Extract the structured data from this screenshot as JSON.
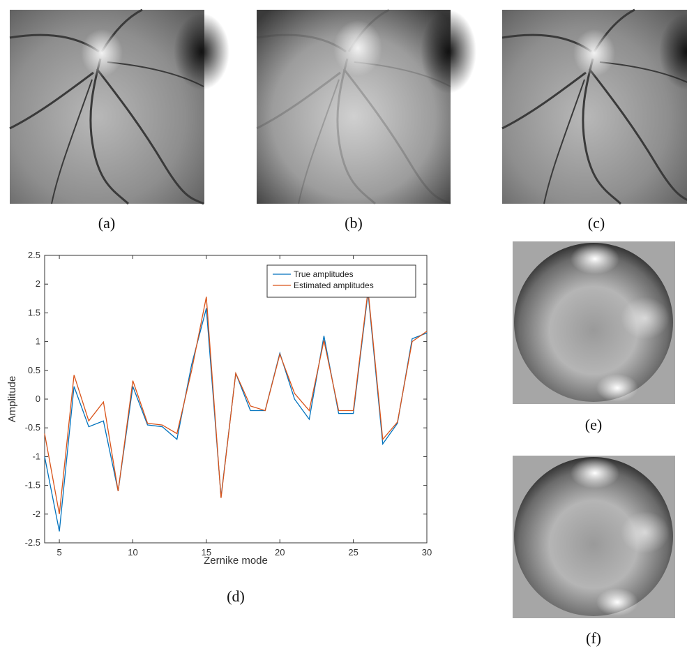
{
  "panels": {
    "a": "(a)",
    "b": "(b)",
    "c": "(c)",
    "d": "(d)",
    "e": "(e)",
    "f": "(f)"
  },
  "chart_data": {
    "type": "line",
    "x_label": "Zernike mode",
    "y_label": "Amplitude",
    "x": [
      4,
      5,
      6,
      7,
      8,
      9,
      10,
      11,
      12,
      13,
      14,
      15,
      16,
      17,
      18,
      19,
      20,
      21,
      22,
      23,
      24,
      25,
      26,
      27,
      28,
      29,
      30
    ],
    "series": [
      {
        "name": "True amplitudes",
        "color": "#0072bd",
        "values": [
          -1.0,
          -2.3,
          0.22,
          -0.48,
          -0.38,
          -1.6,
          0.22,
          -0.45,
          -0.48,
          -0.7,
          0.6,
          1.58,
          -1.7,
          0.45,
          -0.2,
          -0.2,
          0.8,
          0.0,
          -0.35,
          1.1,
          -0.25,
          -0.25,
          1.85,
          -0.78,
          -0.42,
          1.05,
          1.15
        ]
      },
      {
        "name": "Estimated amplitudes",
        "color": "#d95319",
        "values": [
          -0.6,
          -2.0,
          0.42,
          -0.38,
          -0.05,
          -1.6,
          0.32,
          -0.42,
          -0.45,
          -0.6,
          0.5,
          1.78,
          -1.72,
          0.45,
          -0.12,
          -0.2,
          0.78,
          0.1,
          -0.2,
          1.02,
          -0.2,
          -0.2,
          1.9,
          -0.7,
          -0.4,
          1.0,
          1.18
        ]
      }
    ],
    "xlim": [
      4,
      30
    ],
    "xticks": [
      5,
      10,
      15,
      20,
      25,
      30
    ],
    "ylim": [
      -2.5,
      2.5
    ],
    "yticks": [
      -2.5,
      -2,
      -1.5,
      -1,
      -0.5,
      0,
      0.5,
      1,
      1.5,
      2,
      2.5
    ],
    "grid": false,
    "legend": "upper right"
  }
}
